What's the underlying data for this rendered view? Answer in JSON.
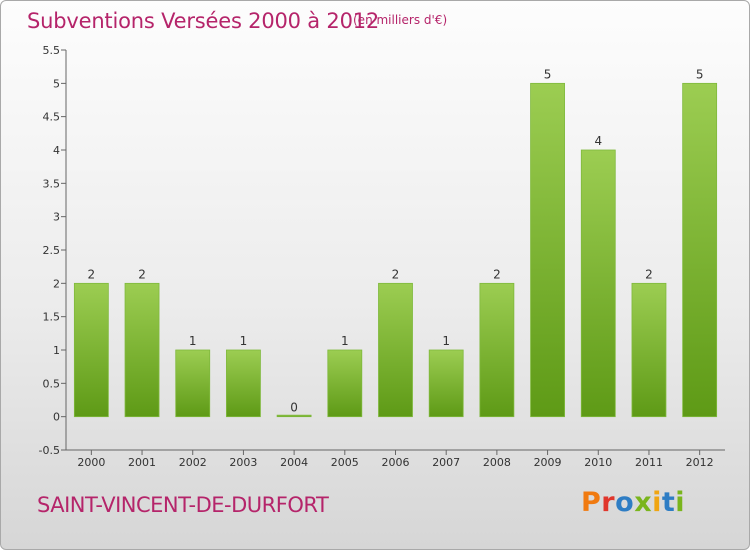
{
  "header": {
    "title": "Subventions Versées 2000 à 2012",
    "unit": "(en milliers d'€)"
  },
  "footer": {
    "commune": "SAINT-VINCENT-DE-DURFORT",
    "logo_letters": [
      "P",
      "r",
      "o",
      "x",
      "i",
      "t",
      "i"
    ]
  },
  "colors": {
    "title": "#b5246a",
    "bar_top": "#9ccd52",
    "bar_bottom": "#5e9a16",
    "bar_edge": "#7fb93c",
    "logo": [
      "#f07a10",
      "#e0362c",
      "#2e7dc4",
      "#7ab51d",
      "#f0a512",
      "#2e7dc4",
      "#7ab51d"
    ]
  },
  "chart_data": {
    "type": "bar",
    "categories": [
      "2000",
      "2001",
      "2002",
      "2003",
      "2004",
      "2005",
      "2006",
      "2007",
      "2008",
      "2009",
      "2010",
      "2011",
      "2012"
    ],
    "values": [
      2,
      2,
      1,
      1,
      0,
      1,
      2,
      1,
      2,
      5,
      4,
      2,
      5
    ],
    "data_labels": [
      "2",
      "2",
      "1",
      "1",
      "0",
      "1",
      "2",
      "1",
      "2",
      "5",
      "4",
      "2",
      "5"
    ],
    "yticks": [
      "-0.5",
      "0",
      "0.5",
      "1",
      "1.5",
      "2",
      "2.5",
      "3",
      "3.5",
      "4",
      "4.5",
      "5",
      "5.5"
    ],
    "ylim": [
      -0.5,
      5.5
    ],
    "grid": false,
    "legend": "none"
  }
}
